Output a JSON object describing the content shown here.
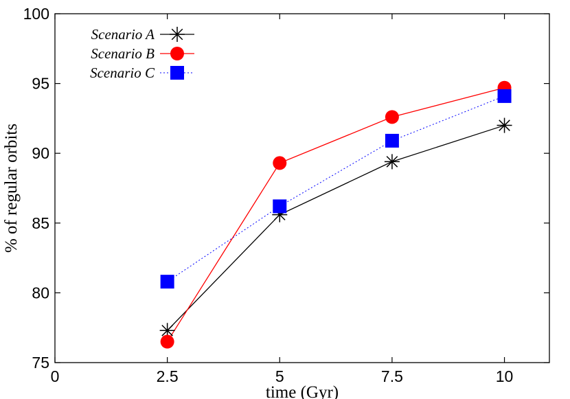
{
  "chart_data": {
    "type": "line",
    "title": "",
    "xlabel": "time (Gyr)",
    "ylabel": "% of regular orbits",
    "xlim": [
      0,
      11
    ],
    "ylim": [
      75,
      100
    ],
    "xticks": [
      0,
      2.5,
      5,
      7.5,
      10
    ],
    "xtick_labels": [
      "0",
      "2.5",
      "5",
      "7.5",
      "10"
    ],
    "yticks": [
      75,
      80,
      85,
      90,
      95,
      100
    ],
    "ytick_labels": [
      "75",
      "80",
      "85",
      "90",
      "95",
      "100"
    ],
    "grid": false,
    "legend_position": "top-left",
    "x": [
      2.5,
      5,
      7.5,
      10
    ],
    "series": [
      {
        "name": "Scenario A",
        "values": [
          77.3,
          85.6,
          89.4,
          92.0
        ],
        "color": "#000000",
        "marker": "asterisk",
        "line": "solid"
      },
      {
        "name": "Scenario B",
        "values": [
          76.5,
          89.3,
          92.6,
          94.7
        ],
        "color": "#ff0000",
        "marker": "circle",
        "line": "solid"
      },
      {
        "name": "Scenario C",
        "values": [
          80.8,
          86.2,
          90.9,
          94.1
        ],
        "color": "#0000ff",
        "marker": "square",
        "line": "dotted"
      }
    ]
  }
}
